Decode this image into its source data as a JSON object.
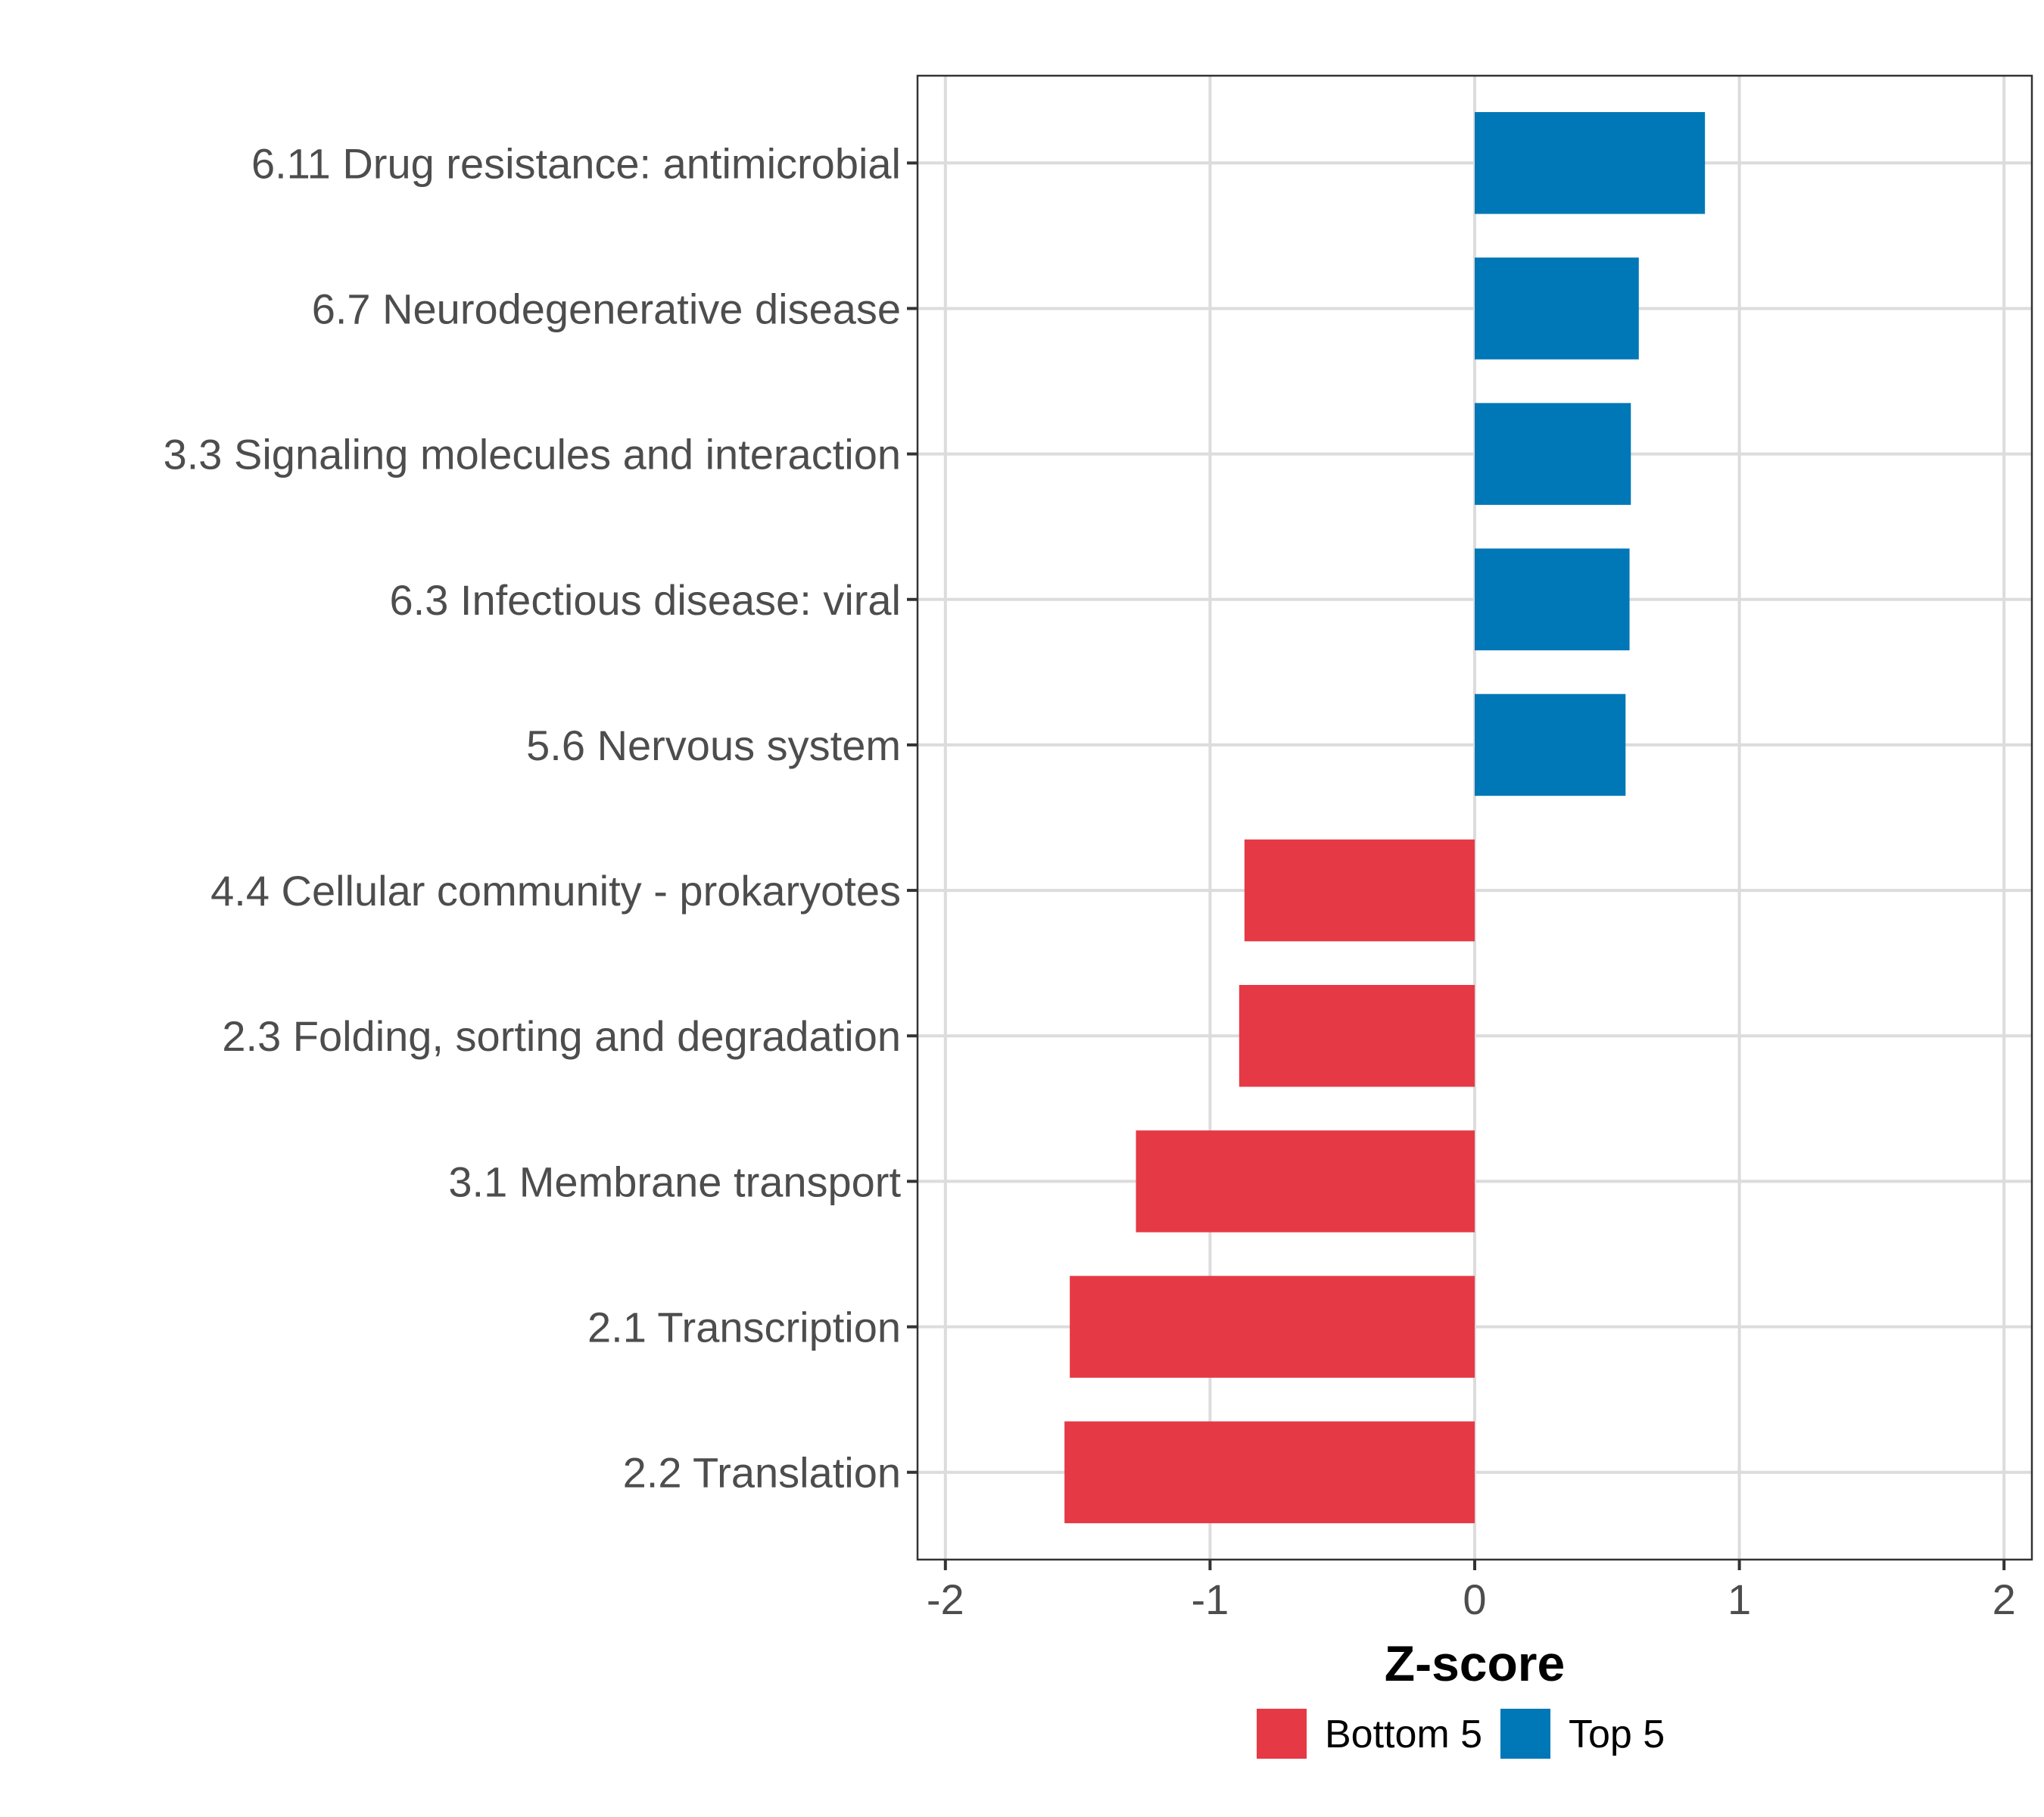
{
  "chart_data": {
    "type": "bar",
    "orientation": "horizontal",
    "title": "",
    "xlabel": "Z-score",
    "ylabel": "",
    "xlim": [
      -2,
      2
    ],
    "xticks": [
      -2,
      -1,
      0,
      1,
      2
    ],
    "xtick_labels": [
      "-2",
      "-1",
      "0",
      "1",
      "2"
    ],
    "grid": true,
    "legend_position": "bottom",
    "categories": [
      "6.11 Drug resistance: antimicrobial",
      "6.7 Neurodegenerative disease",
      "3.3 Signaling molecules and interaction",
      "6.3 Infectious disease: viral",
      "5.6 Nervous system",
      "4.4 Cellular community - prokaryotes",
      "2.3 Folding, sorting and degradation",
      "3.1 Membrane transport",
      "2.1 Transcription",
      "2.2 Translation"
    ],
    "values": [
      0.87,
      0.62,
      0.59,
      0.585,
      0.57,
      -0.87,
      -0.89,
      -1.28,
      -1.53,
      -1.55
    ],
    "groups": [
      "Top 5",
      "Top 5",
      "Top 5",
      "Top 5",
      "Top 5",
      "Bottom 5",
      "Bottom 5",
      "Bottom 5",
      "Bottom 5",
      "Bottom 5"
    ],
    "legend": [
      {
        "name": "Bottom 5",
        "color": "#E63946"
      },
      {
        "name": "Top 5",
        "color": "#0077B6"
      }
    ]
  }
}
